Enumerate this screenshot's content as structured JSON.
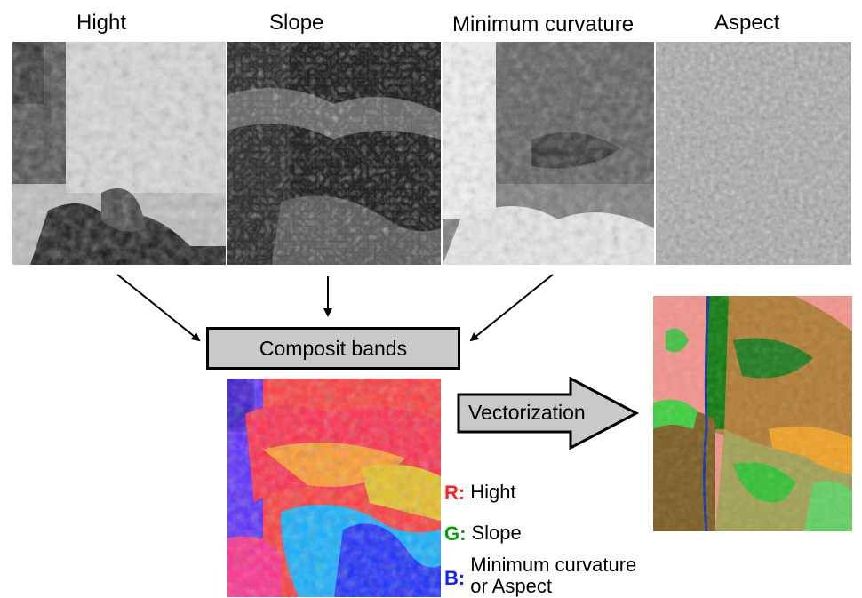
{
  "bands": [
    {
      "id": "hight",
      "label": "Hight"
    },
    {
      "id": "slope",
      "label": "Slope"
    },
    {
      "id": "mincurv",
      "label": "Minimum curvature"
    },
    {
      "id": "aspect",
      "label": "Aspect"
    }
  ],
  "composite": {
    "label": "Composit bands"
  },
  "vectorization": {
    "label": "Vectorization"
  },
  "legend": [
    {
      "key": "R:",
      "text": "Hight",
      "color": "#ff2020"
    },
    {
      "key": "G:",
      "text": "Slope",
      "color": "#00a000"
    },
    {
      "key": "B:",
      "text": "Minimum curvature\nor Aspect",
      "color": "#1020ff"
    }
  ]
}
